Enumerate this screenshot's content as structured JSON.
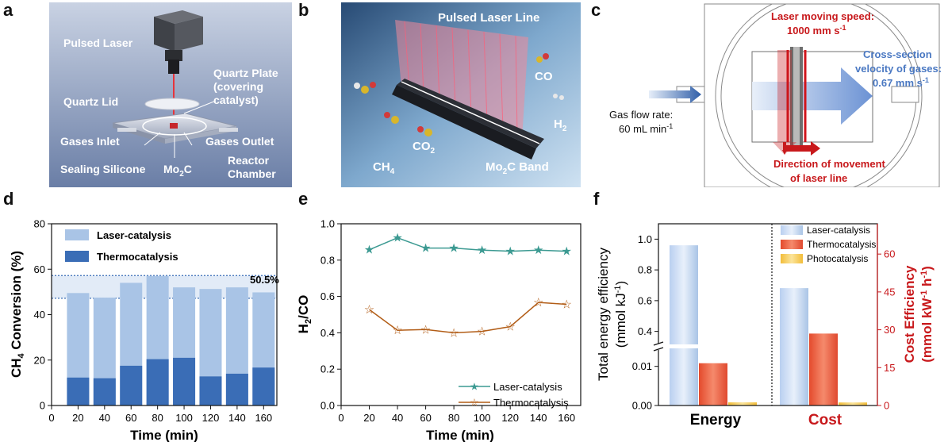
{
  "panels": {
    "a": {
      "letter": "a",
      "labels": {
        "pulsed_laser": "Pulsed Laser",
        "quartz_plate_1": "Quartz Plate",
        "quartz_plate_2": "(covering",
        "quartz_plate_3": "catalyst)",
        "quartz_lid": "Quartz Lid",
        "gases_inlet": "Gases Inlet",
        "gases_outlet": "Gases Outlet",
        "sealing_silicone": "Sealing Silicone",
        "mo2c_main": "Mo",
        "mo2c_sub": "2",
        "mo2c_tail": "C",
        "reactor_1": "Reactor",
        "reactor_2": "Chamber"
      }
    },
    "b": {
      "letter": "b",
      "labels": {
        "pulsed_laser_line": "Pulsed Laser Line",
        "co": "CO",
        "h2_main": "H",
        "h2_sub": "2",
        "co2_main": "CO",
        "co2_sub": "2",
        "ch4_main": "CH",
        "ch4_sub": "4",
        "band_main": "Mo",
        "band_sub": "2",
        "band_tail": "C Band"
      }
    },
    "c": {
      "letter": "c",
      "labels": {
        "laser_speed_1": "Laser moving speed:",
        "laser_speed_2": "1000 mm s",
        "laser_speed_sup": "-1",
        "cross_1": "Cross-section",
        "cross_2": "velocity of gases:",
        "cross_3": "0.67 mm s",
        "cross_sup": "-1",
        "gas_flow_1": "Gas flow rate:",
        "gas_flow_2": "60 mL min",
        "gas_flow_sup": "-1",
        "direction_1": "Direction of movement",
        "direction_2": "of laser line"
      }
    },
    "d": {
      "letter": "d",
      "ylabel_main": "CH",
      "ylabel_sub": "4",
      "ylabel_tail": " Conversion (%)",
      "xlabel": "Time (min)",
      "annotation": "50.5%",
      "legend": [
        "Laser-catalysis",
        "Thermocatalysis"
      ],
      "y_ticks": [
        "0",
        "20",
        "40",
        "60",
        "80"
      ],
      "x_ticks": [
        "0",
        "20",
        "40",
        "60",
        "80",
        "100",
        "120",
        "140",
        "160"
      ]
    },
    "e": {
      "letter": "e",
      "ylabel_main": "H",
      "ylabel_sub": "2",
      "ylabel_tail": "/CO",
      "xlabel": "Time (min)",
      "legend": [
        "Laser-catalysis",
        "Thermocatalysis"
      ],
      "y_ticks": [
        "0.0",
        "0.2",
        "0.4",
        "0.6",
        "0.8",
        "1.0"
      ],
      "x_ticks": [
        "0",
        "20",
        "40",
        "60",
        "80",
        "100",
        "120",
        "140",
        "160"
      ]
    },
    "f": {
      "letter": "f",
      "ylabel_left_1": "Total energy efficiency",
      "ylabel_left_2": "(mmol kJ",
      "ylabel_left_sup": "-1",
      "ylabel_left_3": ")",
      "ylabel_right_1": "Cost Efficiency",
      "ylabel_right_2": "(mmol kW",
      "ylabel_right_sup1": "-1",
      "ylabel_right_3": " h",
      "ylabel_right_sup2": "-1",
      "ylabel_right_4": ")",
      "legend": [
        "Laser-catalysis",
        "Thermocatalysis",
        "Photocatalysis"
      ],
      "left_ticks_upper": [
        "0.4",
        "0.6",
        "0.8",
        "1.0"
      ],
      "left_ticks_lower": [
        "0.00",
        "0.01"
      ],
      "right_ticks": [
        "0",
        "15",
        "30",
        "45",
        "60"
      ],
      "categories": [
        "Energy",
        "Cost"
      ]
    }
  },
  "colors": {
    "laser_light": "#a9c4e6",
    "thermo_dark": "#3a6db6",
    "teal": "#3c9a92",
    "brown": "#b25d17",
    "red": "#c8191c",
    "blue_text": "#4a78c2",
    "orange": "#e8513a",
    "yellow": "#f3c64e"
  },
  "chart_data": [
    {
      "type": "bar",
      "panel": "d",
      "xlabel": "Time (min)",
      "ylabel": "CH4 Conversion (%)",
      "x": [
        20,
        40,
        60,
        80,
        100,
        120,
        140,
        160
      ],
      "series": [
        {
          "name": "Laser-catalysis",
          "values": [
            49.5,
            47.5,
            54,
            57,
            52,
            51.3,
            52,
            49.8
          ]
        },
        {
          "name": "Thermocatalysis",
          "values": [
            12.3,
            12,
            17.5,
            20.4,
            21,
            12.8,
            14,
            16.7
          ]
        }
      ],
      "ylim": [
        0,
        80
      ],
      "xlim": [
        0,
        170
      ],
      "band": [
        47.2,
        57.2
      ],
      "annotation": "50.5%",
      "legend_position": "top-left"
    },
    {
      "type": "line",
      "panel": "e",
      "xlabel": "Time (min)",
      "ylabel": "H2/CO",
      "x": [
        20,
        40,
        60,
        80,
        100,
        120,
        140,
        160
      ],
      "series": [
        {
          "name": "Laser-catalysis",
          "values": [
            0.857,
            0.923,
            0.866,
            0.866,
            0.855,
            0.849,
            0.855,
            0.849
          ]
        },
        {
          "name": "Thermocatalysis",
          "values": [
            0.528,
            0.414,
            0.418,
            0.4,
            0.408,
            0.434,
            0.567,
            0.557
          ]
        }
      ],
      "ylim": [
        0.0,
        1.0
      ],
      "xlim": [
        0,
        170
      ],
      "legend_position": "bottom-right"
    },
    {
      "type": "bar",
      "panel": "f",
      "categories": [
        "Energy",
        "Cost"
      ],
      "series": [
        {
          "name": "Laser-catalysis",
          "values": [
            0.96,
            46.5
          ]
        },
        {
          "name": "Thermocatalysis",
          "values": [
            0.0108,
            28.5
          ]
        },
        {
          "name": "Photocatalysis",
          "values": [
            0.0008,
            1.2
          ]
        }
      ],
      "ylabel_left": "Total energy efficiency (mmol kJ-1)",
      "ylabel_right": "Cost Efficiency (mmol kW-1 h-1)",
      "ylim_left_lower": [
        0,
        0.015
      ],
      "ylim_left_upper": [
        0.3,
        1.1
      ],
      "ylim_right": [
        0,
        72
      ],
      "legend_position": "top-right"
    }
  ]
}
